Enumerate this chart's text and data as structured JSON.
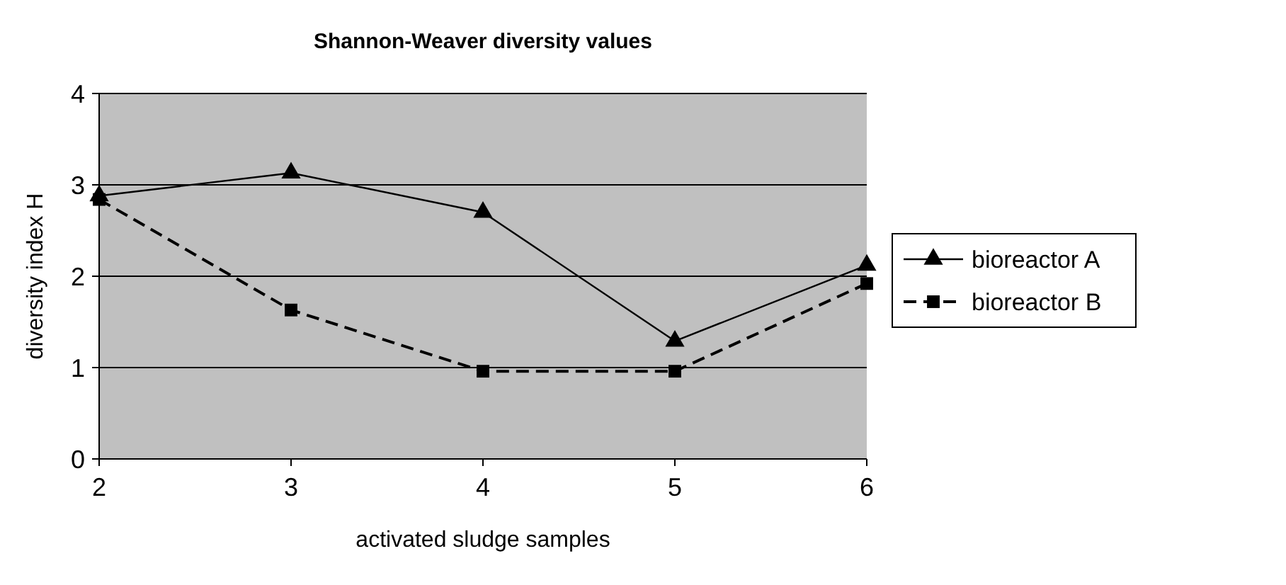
{
  "chart_data": {
    "type": "line",
    "title": "Shannon-Weaver diversity values",
    "xlabel": "activated sludge samples",
    "ylabel": "diversity index H",
    "x": [
      2,
      3,
      4,
      5,
      6
    ],
    "xlim": [
      2,
      6
    ],
    "xticks": [
      2,
      3,
      4,
      5,
      6
    ],
    "ylim": [
      0,
      4
    ],
    "yticks": [
      0,
      1,
      2,
      3,
      4
    ],
    "grid": "y",
    "legend": "right",
    "series": [
      {
        "name": "bioreactor A",
        "color": "#000000",
        "marker": "triangle",
        "line_style": "solid",
        "values": [
          2.88,
          3.13,
          2.7,
          1.29,
          2.12
        ]
      },
      {
        "name": "bioreactor B",
        "color": "#000000",
        "marker": "square",
        "line_style": "dashed",
        "values": [
          2.84,
          1.63,
          0.96,
          0.96,
          1.92
        ]
      }
    ]
  }
}
